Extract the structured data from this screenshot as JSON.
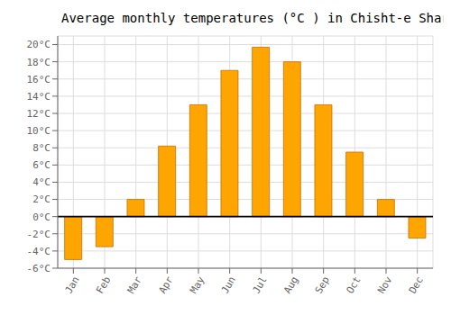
{
  "chart_data": {
    "type": "bar",
    "title": "Average monthly temperatures (°C ) in Chisht-e Sharīf",
    "categories": [
      "Jan",
      "Feb",
      "Mar",
      "Apr",
      "May",
      "Jun",
      "Jul",
      "Aug",
      "Sep",
      "Oct",
      "Nov",
      "Dec"
    ],
    "values": [
      -5.0,
      -3.5,
      2.0,
      8.2,
      13.0,
      17.0,
      19.7,
      18.0,
      13.0,
      7.5,
      2.0,
      -2.5
    ],
    "color": "#FFA500",
    "ylim": [
      -6,
      21
    ],
    "yticks": [
      {
        "value": -6,
        "label": "-6°C"
      },
      {
        "value": -4,
        "label": "-4°C"
      },
      {
        "value": -2,
        "label": "-2°C"
      },
      {
        "value": 0,
        "label": "0°C"
      },
      {
        "value": 2,
        "label": "2°C"
      },
      {
        "value": 4,
        "label": "4°C"
      },
      {
        "value": 6,
        "label": "6°C"
      },
      {
        "value": 8,
        "label": "8°C"
      },
      {
        "value": 10,
        "label": "10°C"
      },
      {
        "value": 12,
        "label": "12°C"
      },
      {
        "value": 14,
        "label": "14°C"
      },
      {
        "value": 16,
        "label": "16°C"
      },
      {
        "value": 18,
        "label": "18°C"
      },
      {
        "value": 20,
        "label": "20°C"
      }
    ],
    "grid": true
  }
}
